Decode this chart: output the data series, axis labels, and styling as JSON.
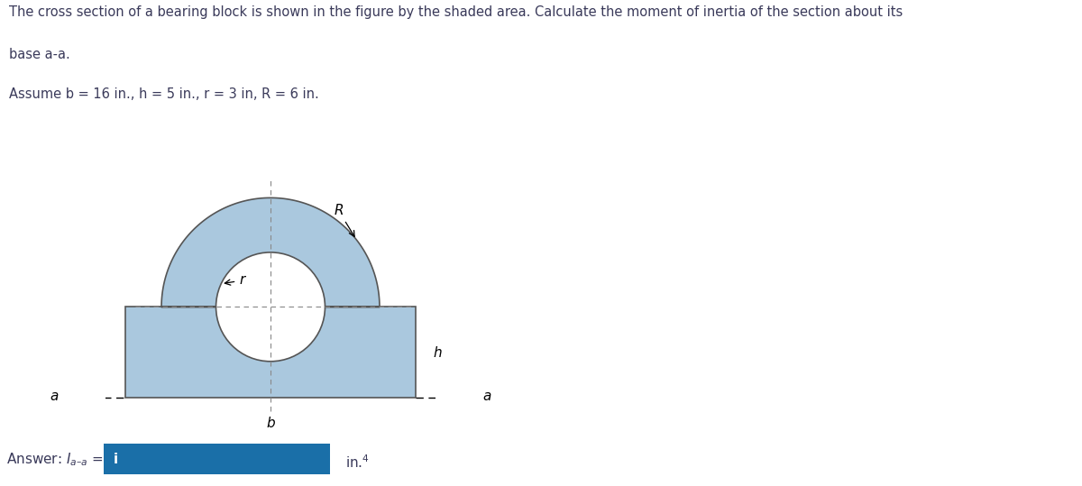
{
  "title_line1": "The cross section of a bearing block is shown in the figure by the shaded area. Calculate the moment of inertia of the section about its",
  "title_line2": "base a-a.",
  "title_line3": "Assume b = 16 in., h = 5 in., r = 3 in, R = 6 in.",
  "shape_color": "#aac8de",
  "shape_edge_color": "#555555",
  "answer_box_color": "#1a6fa8",
  "answer_text_color": "#ffffff",
  "text_color": "#3a3a5a",
  "fig_width": 12.0,
  "fig_height": 5.39,
  "dpi": 100
}
